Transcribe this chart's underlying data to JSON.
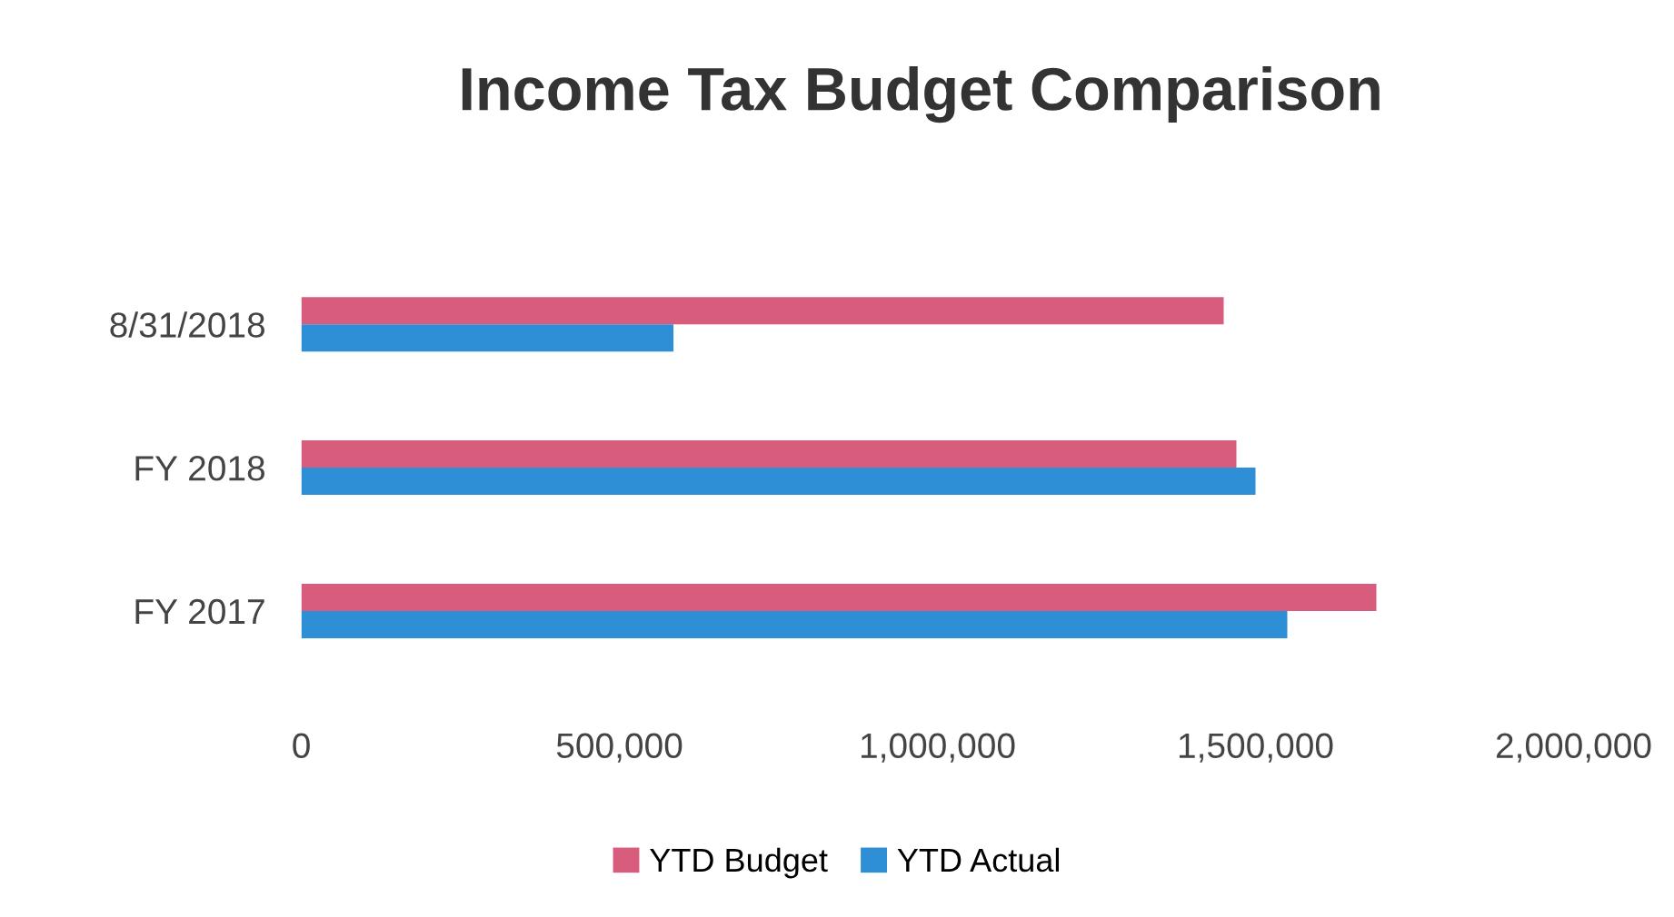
{
  "chart_data": {
    "type": "bar",
    "orientation": "horizontal",
    "title": "Income Tax Budget Comparison",
    "categories": [
      "8/31/2018",
      "FY 2018",
      "FY 2017"
    ],
    "series": [
      {
        "name": "YTD Budget",
        "color": "#d85c7c",
        "values": [
          1450000,
          1470000,
          1690000
        ]
      },
      {
        "name": "YTD Actual",
        "color": "#2e8fd6",
        "values": [
          585000,
          1500000,
          1550000
        ]
      }
    ],
    "xlim": [
      0,
      2000000
    ],
    "xticks": [
      {
        "value": 0,
        "label": "0"
      },
      {
        "value": 500000,
        "label": "500,000"
      },
      {
        "value": 1000000,
        "label": "1,000,000"
      },
      {
        "value": 1500000,
        "label": "1,500,000"
      },
      {
        "value": 2000000,
        "label": "2,000,000"
      }
    ],
    "grid": false,
    "legend": "bottom"
  }
}
